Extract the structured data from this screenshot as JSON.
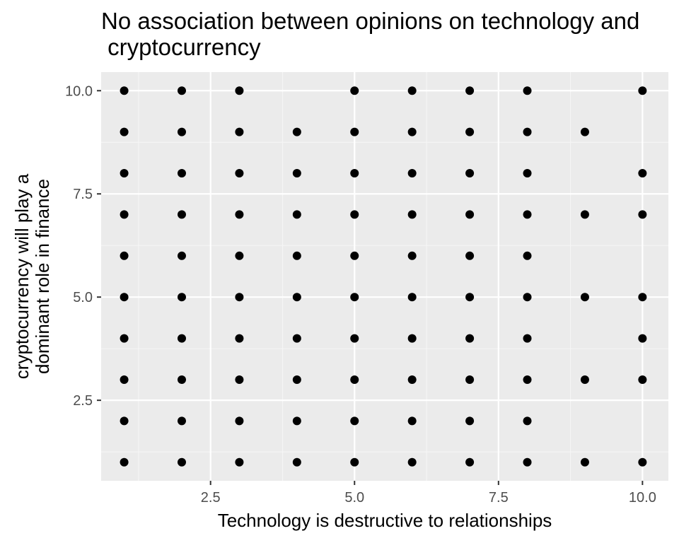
{
  "chart_data": {
    "type": "scatter",
    "title_lines": [
      "No association between opinions on technology and",
      " cryptocurrency"
    ],
    "xlabel": "Technology is destructive to relationships",
    "ylabel_lines": [
      "cryptocurrency will play a",
      "dominant role in finance"
    ],
    "xlim": [
      0.6,
      10.45
    ],
    "ylim": [
      0.55,
      10.45
    ],
    "x_ticks": [
      2.5,
      5.0,
      7.5,
      10.0
    ],
    "x_tick_labels": [
      "2.5",
      "5.0",
      "7.5",
      "10.0"
    ],
    "y_ticks": [
      2.5,
      5.0,
      7.5,
      10.0
    ],
    "y_tick_labels": [
      "2.5",
      "5.0",
      "7.5",
      "10.0"
    ],
    "grid": true,
    "colors": {
      "panel": "#ebebeb",
      "grid_major": "#ffffff",
      "grid_minor": "#f5f5f5",
      "point": "#000000",
      "tick": "#333333"
    },
    "points": [
      {
        "x": 1,
        "y": [
          1,
          2,
          3,
          4,
          5,
          6,
          7,
          8,
          9,
          10
        ]
      },
      {
        "x": 2,
        "y": [
          1,
          2,
          3,
          4,
          5,
          6,
          7,
          8,
          9,
          10
        ]
      },
      {
        "x": 3,
        "y": [
          1,
          2,
          3,
          4,
          5,
          6,
          7,
          8,
          9,
          10
        ]
      },
      {
        "x": 4,
        "y": [
          1,
          2,
          3,
          4,
          5,
          6,
          7,
          8,
          9
        ]
      },
      {
        "x": 5,
        "y": [
          1,
          2,
          3,
          4,
          5,
          6,
          7,
          8,
          9,
          10
        ]
      },
      {
        "x": 6,
        "y": [
          1,
          2,
          3,
          4,
          5,
          6,
          7,
          8,
          9,
          10
        ]
      },
      {
        "x": 7,
        "y": [
          1,
          2,
          3,
          4,
          5,
          6,
          7,
          8,
          9,
          10
        ]
      },
      {
        "x": 8,
        "y": [
          1,
          2,
          3,
          4,
          5,
          6,
          7,
          8,
          9,
          10
        ]
      },
      {
        "x": 9,
        "y": [
          1,
          3,
          5,
          7,
          9
        ]
      },
      {
        "x": 10,
        "y": [
          1,
          3,
          4,
          5,
          7,
          8,
          10
        ]
      }
    ]
  }
}
